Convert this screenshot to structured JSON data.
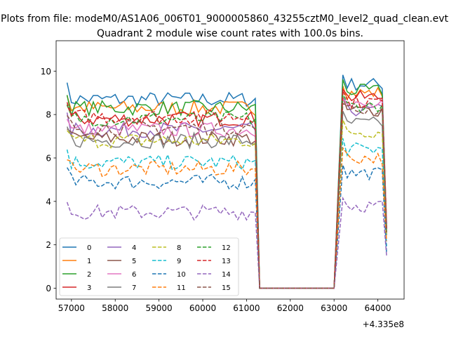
{
  "figure": {
    "suptitle": "Plots from file: modeM0/AS1A06_006T01_9000005860_43255cztM0_level2_quad_clean.evt"
  },
  "chart_data": {
    "type": "line",
    "title": "Quadrant 2 module wise count rates with 100.0s bins.",
    "xlabel": "",
    "ylabel": "",
    "x_offset_label": "+4.335e8",
    "xlim": [
      56650,
      64600
    ],
    "ylim": [
      -0.5,
      11.4
    ],
    "xticks": [
      57000,
      58000,
      59000,
      60000,
      61000,
      62000,
      63000,
      64000
    ],
    "yticks": [
      0,
      2,
      4,
      6,
      8,
      10
    ],
    "grid": false,
    "legend": {
      "placement": "lower-left",
      "columns": 4
    },
    "segments": [
      {
        "x_start": 56900,
        "x_end": 61200,
        "step": 100
      },
      {
        "x_start": 63200,
        "x_end": 64200,
        "step": 100
      }
    ],
    "gap": {
      "x": [
        61300,
        63000
      ],
      "value": 0
    },
    "series": [
      {
        "name": "0",
        "color": "#1f77b4",
        "dash": "solid",
        "level1": 8.7,
        "level2": 9.4
      },
      {
        "name": "1",
        "color": "#ff7f0e",
        "dash": "solid",
        "level1": 8.3,
        "level2": 9.0
      },
      {
        "name": "2",
        "color": "#2ca02c",
        "dash": "solid",
        "level1": 8.3,
        "level2": 9.1
      },
      {
        "name": "3",
        "color": "#d62728",
        "dash": "solid",
        "level1": 7.8,
        "level2": 8.8
      },
      {
        "name": "4",
        "color": "#9467bd",
        "dash": "solid",
        "level1": 7.3,
        "level2": 8.2
      },
      {
        "name": "5",
        "color": "#8c564b",
        "dash": "solid",
        "level1": 6.9,
        "level2": 8.2
      },
      {
        "name": "6",
        "color": "#e377c2",
        "dash": "solid",
        "level1": 7.3,
        "level2": 8.4
      },
      {
        "name": "7",
        "color": "#7f7f7f",
        "dash": "solid",
        "level1": 6.8,
        "level2": 7.6
      },
      {
        "name": "8",
        "color": "#bcbd22",
        "dash": "dashed",
        "level1": 6.8,
        "level2": 7.2
      },
      {
        "name": "9",
        "color": "#17becf",
        "dash": "dashed",
        "level1": 5.8,
        "level2": 6.4
      },
      {
        "name": "10",
        "color": "#1f77b4",
        "dash": "dashed",
        "level1": 4.9,
        "level2": 5.3
      },
      {
        "name": "11",
        "color": "#ff7f0e",
        "dash": "dashed",
        "level1": 5.5,
        "level2": 6.0
      },
      {
        "name": "12",
        "color": "#2ca02c",
        "dash": "dashed",
        "level1": 7.8,
        "level2": 8.4
      },
      {
        "name": "13",
        "color": "#d62728",
        "dash": "dashed",
        "level1": 7.9,
        "level2": 8.6
      },
      {
        "name": "14",
        "color": "#9467bd",
        "dash": "dashed",
        "level1": 3.5,
        "level2": 3.8
      },
      {
        "name": "15",
        "color": "#8c564b",
        "dash": "dashed",
        "level1": 7.4,
        "level2": 8.2
      }
    ]
  }
}
